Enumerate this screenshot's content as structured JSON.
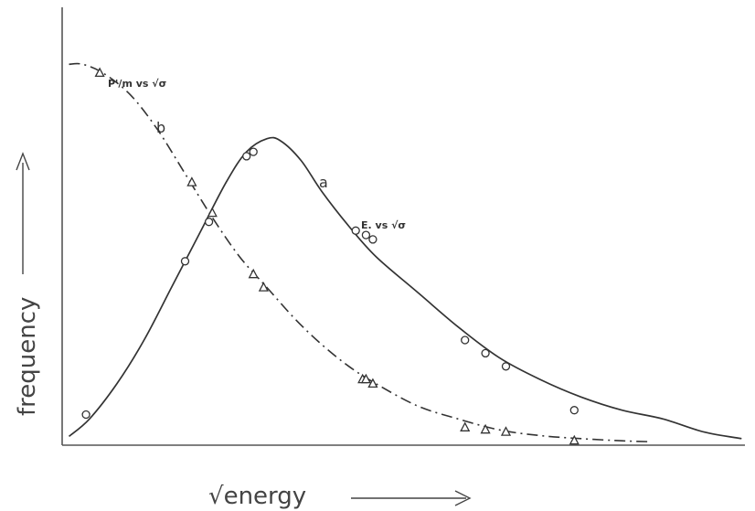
{
  "chart_data": {
    "type": "line",
    "xlabel": "√energy",
    "ylabel": "frequency",
    "xlim": [
      0,
      1
    ],
    "ylim": [
      0,
      1
    ],
    "grid": false,
    "series": [
      {
        "name": "E. vs √σ",
        "label": "a",
        "style": "solid",
        "marker": "circle",
        "curve": [
          [
            0.01,
            0.02
          ],
          [
            0.04,
            0.06
          ],
          [
            0.08,
            0.14
          ],
          [
            0.12,
            0.24
          ],
          [
            0.16,
            0.36
          ],
          [
            0.2,
            0.48
          ],
          [
            0.24,
            0.6
          ],
          [
            0.27,
            0.67
          ],
          [
            0.3,
            0.7
          ],
          [
            0.32,
            0.695
          ],
          [
            0.35,
            0.65
          ],
          [
            0.38,
            0.58
          ],
          [
            0.42,
            0.5
          ],
          [
            0.46,
            0.43
          ],
          [
            0.52,
            0.35
          ],
          [
            0.58,
            0.27
          ],
          [
            0.64,
            0.2
          ],
          [
            0.7,
            0.15
          ],
          [
            0.76,
            0.11
          ],
          [
            0.82,
            0.08
          ],
          [
            0.88,
            0.06
          ],
          [
            0.94,
            0.03
          ],
          [
            0.995,
            0.015
          ]
        ],
        "points": [
          [
            0.035,
            0.07
          ],
          [
            0.18,
            0.42
          ],
          [
            0.215,
            0.51
          ],
          [
            0.27,
            0.66
          ],
          [
            0.28,
            0.67
          ],
          [
            0.43,
            0.49
          ],
          [
            0.445,
            0.48
          ],
          [
            0.455,
            0.47
          ],
          [
            0.59,
            0.24
          ],
          [
            0.62,
            0.21
          ],
          [
            0.65,
            0.18
          ],
          [
            0.75,
            0.08
          ]
        ]
      },
      {
        "name": "P'/m vs √σ",
        "label": "b",
        "style": "dash-dot",
        "marker": "triangle",
        "curve": [
          [
            0.01,
            0.87
          ],
          [
            0.03,
            0.87
          ],
          [
            0.06,
            0.85
          ],
          [
            0.1,
            0.8
          ],
          [
            0.14,
            0.72
          ],
          [
            0.18,
            0.62
          ],
          [
            0.22,
            0.52
          ],
          [
            0.26,
            0.43
          ],
          [
            0.3,
            0.36
          ],
          [
            0.34,
            0.29
          ],
          [
            0.38,
            0.23
          ],
          [
            0.42,
            0.18
          ],
          [
            0.46,
            0.14
          ],
          [
            0.52,
            0.09
          ],
          [
            0.58,
            0.06
          ],
          [
            0.64,
            0.035
          ],
          [
            0.7,
            0.022
          ],
          [
            0.76,
            0.015
          ],
          [
            0.82,
            0.01
          ],
          [
            0.86,
            0.008
          ]
        ],
        "points": [
          [
            0.055,
            0.85
          ],
          [
            0.19,
            0.6
          ],
          [
            0.22,
            0.53
          ],
          [
            0.28,
            0.39
          ],
          [
            0.295,
            0.36
          ],
          [
            0.44,
            0.15
          ],
          [
            0.445,
            0.15
          ],
          [
            0.455,
            0.14
          ],
          [
            0.59,
            0.04
          ],
          [
            0.62,
            0.035
          ],
          [
            0.65,
            0.03
          ],
          [
            0.75,
            0.01
          ]
        ]
      }
    ],
    "annotations": {
      "a_letter": "a",
      "b_letter": "b",
      "a_text": "E. vs √σ",
      "b_text": "P'/m vs √σ"
    }
  }
}
